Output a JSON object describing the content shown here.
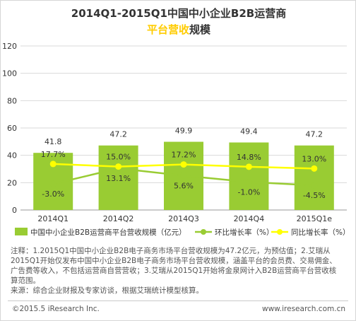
{
  "chart_data": {
    "type": "bar",
    "title": "2014Q1-2015Q1中国中小企业B2B运营商",
    "title_line2_highlight": "平台营收",
    "title_line2_rest": "规模",
    "categories": [
      "2014Q1",
      "2014Q2",
      "2014Q3",
      "2014Q4",
      "2015Q1e"
    ],
    "ylim": [
      0,
      120
    ],
    "yticks": [
      0,
      20,
      40,
      60,
      80,
      100,
      120
    ],
    "grid": true,
    "legend_position": "bottom",
    "series": [
      {
        "name": "中国中小企业B2B运营商平台营收规模（亿元）",
        "type": "bar",
        "values": [
          41.8,
          47.2,
          49.9,
          49.4,
          47.2
        ],
        "labels": [
          "41.8",
          "47.2",
          "49.9",
          "49.4",
          "47.2"
        ]
      },
      {
        "name": "环比增长率（%）",
        "type": "line",
        "values": [
          -3.0,
          13.1,
          5.6,
          -1.0,
          -4.5
        ],
        "labels": [
          "-3.0%",
          "13.1%",
          "5.6%",
          "-1.0%",
          "-4.5%"
        ]
      },
      {
        "name": "同比增长率（%）",
        "type": "line",
        "values": [
          17.7,
          15.0,
          17.2,
          14.8,
          13.0
        ],
        "labels": [
          "17.7%",
          "15.0%",
          "17.2%",
          "14.8%",
          "13.0%"
        ]
      }
    ]
  },
  "colors": {
    "bar": "#99cc33",
    "mom_line": "#99cc33",
    "yoy_line": "#ffff00",
    "title_highlight": "#ffcc00",
    "grid": "#d9d9d9"
  },
  "notes": {
    "line1": "注释：1.2015Q1中国中小企业B2B电子商务市场平台营收规模为47.2亿元，为预估值；2.艾瑞从",
    "line2": "2015Q1开始仅发布中国中小企业B2B电子商务市场平台营收规模，涵盖平台的会员费、交易佣金、",
    "line3": "广告费等收入，不包括运营商自营营收；3.艾瑞从2015Q1开始将金泉网计入B2B运营商平台营收核",
    "line4": "算范围。",
    "source": "来源：综合企业财报及专家访谈，根据艾瑞统计模型核算。"
  },
  "footer": {
    "copyright": "©2015.5 iResearch Inc.",
    "site": "www.iresearch.com.cn"
  }
}
